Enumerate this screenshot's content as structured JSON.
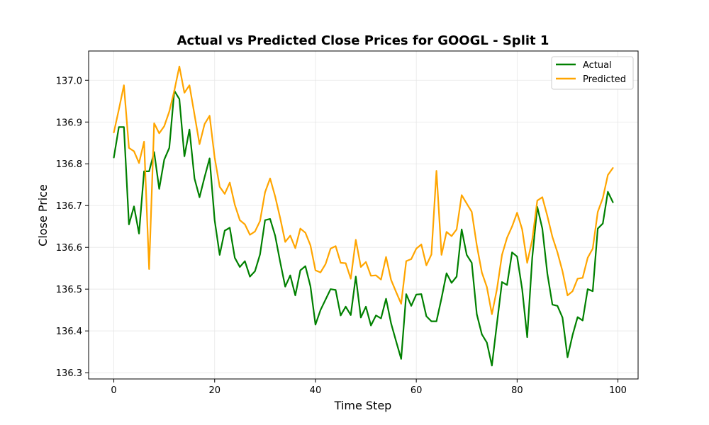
{
  "chart_data": {
    "type": "line",
    "title": "Actual vs Predicted Close Prices for GOOGL - Split 1",
    "xlabel": "Time Step",
    "ylabel": "Close Price",
    "xlim": [
      -5,
      104
    ],
    "ylim": [
      136.285,
      137.07
    ],
    "xticks": [
      0,
      20,
      40,
      60,
      80,
      100
    ],
    "yticks": [
      136.3,
      136.4,
      136.5,
      136.6,
      136.7,
      136.8,
      136.9,
      137.0
    ],
    "ytick_labels": [
      "136.3",
      "136.4",
      "136.5",
      "136.6",
      "136.7",
      "136.8",
      "136.9",
      "137.0"
    ],
    "grid": true,
    "legend_position": "top-right",
    "x": [
      0,
      1,
      2,
      3,
      4,
      5,
      6,
      7,
      8,
      9,
      10,
      11,
      12,
      13,
      14,
      15,
      16,
      17,
      18,
      19,
      20,
      21,
      22,
      23,
      24,
      25,
      26,
      27,
      28,
      29,
      30,
      31,
      32,
      33,
      34,
      35,
      36,
      37,
      38,
      39,
      40,
      41,
      42,
      43,
      44,
      45,
      46,
      47,
      48,
      49,
      50,
      51,
      52,
      53,
      54,
      55,
      56,
      57,
      58,
      59,
      60,
      61,
      62,
      63,
      64,
      65,
      66,
      67,
      68,
      69,
      70,
      71,
      72,
      73,
      74,
      75,
      76,
      77,
      78,
      79,
      80,
      81,
      82,
      83,
      84,
      85,
      86,
      87,
      88,
      89,
      90,
      91,
      92,
      93,
      94,
      95,
      96,
      97,
      98,
      99
    ],
    "series": [
      {
        "name": "Actual",
        "color": "#008000",
        "values": [
          136.815,
          136.888,
          136.888,
          136.655,
          136.698,
          136.633,
          136.782,
          136.782,
          136.828,
          136.74,
          136.81,
          136.838,
          136.975,
          136.955,
          136.818,
          136.882,
          136.765,
          136.72,
          136.768,
          136.813,
          136.665,
          136.582,
          136.64,
          136.647,
          136.575,
          136.553,
          136.567,
          136.53,
          136.543,
          136.583,
          136.665,
          136.668,
          136.628,
          136.565,
          136.506,
          136.533,
          136.485,
          136.545,
          136.555,
          136.507,
          136.415,
          136.45,
          136.475,
          136.5,
          136.498,
          136.437,
          136.458,
          136.438,
          136.53,
          136.432,
          136.458,
          136.413,
          136.437,
          136.43,
          136.477,
          136.418,
          136.375,
          136.333,
          136.488,
          136.46,
          136.487,
          136.488,
          136.435,
          136.423,
          136.423,
          136.478,
          136.538,
          136.515,
          136.53,
          136.643,
          136.582,
          136.563,
          136.44,
          136.392,
          136.372,
          136.317,
          136.418,
          136.517,
          136.51,
          136.588,
          136.578,
          136.5,
          136.385,
          136.575,
          136.697,
          136.645,
          136.537,
          136.463,
          136.46,
          136.432,
          136.337,
          136.39,
          136.433,
          136.425,
          136.5,
          136.495,
          136.645,
          136.657,
          136.733,
          136.708
        ]
      },
      {
        "name": "Predicted",
        "color": "#FFA500",
        "values": [
          136.875,
          136.93,
          136.988,
          136.838,
          136.83,
          136.802,
          136.853,
          136.548,
          136.897,
          136.873,
          136.89,
          136.925,
          136.975,
          137.033,
          136.97,
          136.988,
          136.918,
          136.847,
          136.895,
          136.915,
          136.815,
          136.745,
          136.728,
          136.755,
          136.702,
          136.665,
          136.655,
          136.63,
          136.638,
          136.663,
          136.732,
          136.765,
          136.722,
          136.67,
          136.613,
          136.628,
          136.598,
          136.645,
          136.635,
          136.605,
          136.545,
          136.54,
          136.56,
          136.597,
          136.603,
          136.563,
          136.562,
          136.525,
          136.618,
          136.553,
          136.565,
          136.532,
          136.533,
          136.523,
          136.577,
          136.522,
          136.493,
          136.465,
          136.567,
          136.572,
          136.597,
          136.607,
          136.557,
          136.583,
          136.783,
          136.582,
          136.637,
          136.627,
          136.643,
          136.725,
          136.705,
          136.685,
          136.605,
          136.54,
          136.505,
          136.44,
          136.5,
          136.582,
          136.623,
          136.65,
          136.683,
          136.643,
          136.563,
          136.618,
          136.712,
          136.72,
          136.675,
          136.625,
          136.588,
          136.543,
          136.485,
          136.495,
          136.525,
          136.527,
          136.575,
          136.597,
          136.685,
          136.718,
          136.773,
          136.79
        ]
      }
    ]
  }
}
